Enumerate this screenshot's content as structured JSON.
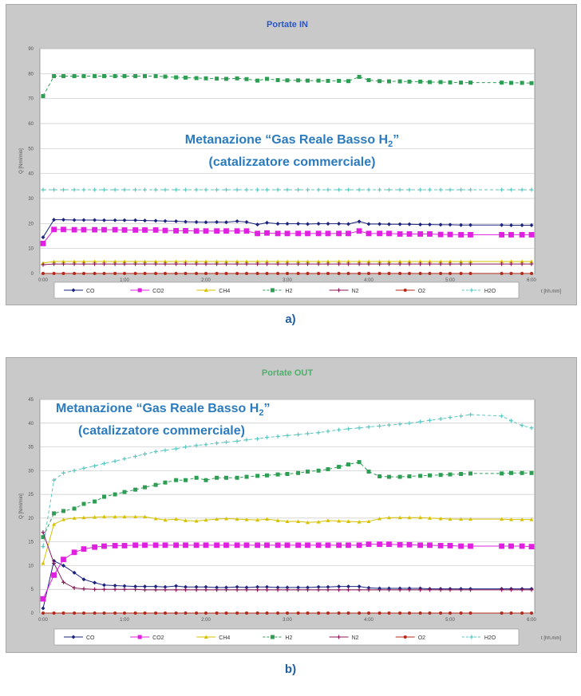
{
  "captions": {
    "a": "a)",
    "b": "b)"
  },
  "overlay": {
    "line1": "Metanazione “Gas Reale Basso H",
    "sub": "2",
    "close": "”",
    "line2": "(catalizzatore commerciale)"
  },
  "chart_data": [
    {
      "type": "line",
      "title": "Portate  IN",
      "title_color": "#2a56c6",
      "ylabel": "Q [Nml/min]",
      "xlabel": "t [hh.mm]",
      "ylim": [
        0,
        90
      ],
      "ytick_labels": [
        "0",
        "10",
        "20",
        "30",
        "40",
        "50",
        "60",
        "70",
        "80",
        "90"
      ],
      "xticks": [
        0,
        60,
        120,
        180,
        240,
        300,
        360
      ],
      "xtick_labels": [
        "0:00",
        "1:00",
        "2:00",
        "3:00",
        "4:00",
        "5:00",
        "6:00"
      ],
      "grid": true,
      "legend_position": "bottom",
      "x": [
        0,
        8,
        15,
        23,
        30,
        38,
        45,
        53,
        60,
        68,
        75,
        83,
        90,
        98,
        105,
        113,
        120,
        128,
        135,
        143,
        150,
        158,
        165,
        173,
        180,
        188,
        195,
        203,
        210,
        218,
        225,
        233,
        240,
        248,
        255,
        263,
        270,
        278,
        285,
        293,
        300,
        308,
        315,
        338,
        345,
        353,
        360
      ],
      "series": [
        {
          "name": "CO",
          "color": "#1a237e",
          "marker": "diamond",
          "values": [
            14.5,
            21.5,
            21.5,
            21.4,
            21.4,
            21.4,
            21.3,
            21.3,
            21.3,
            21.3,
            21.2,
            21.1,
            21.0,
            20.9,
            20.7,
            20.6,
            20.5,
            20.6,
            20.5,
            20.9,
            20.6,
            19.6,
            20.3,
            19.9,
            19.9,
            19.9,
            19.8,
            19.9,
            19.9,
            19.9,
            19.8,
            20.8,
            19.8,
            19.8,
            19.7,
            19.7,
            19.7,
            19.6,
            19.6,
            19.5,
            19.5,
            19.4,
            19.4,
            19.4,
            19.3,
            19.3,
            19.3
          ]
        },
        {
          "name": "CO2",
          "color": "#e020e0",
          "marker": "square",
          "values": [
            12,
            17.6,
            17.6,
            17.5,
            17.5,
            17.5,
            17.5,
            17.5,
            17.4,
            17.4,
            17.4,
            17.4,
            17.2,
            17.1,
            17.1,
            17.0,
            17.0,
            17.0,
            17.0,
            17.0,
            17.0,
            16.0,
            16.2,
            16.0,
            16.0,
            16.0,
            16.0,
            16.0,
            16.0,
            16.0,
            16.0,
            17.0,
            16.0,
            16.0,
            16.0,
            15.8,
            15.8,
            15.8,
            15.8,
            15.6,
            15.6,
            15.5,
            15.5,
            15.5,
            15.5,
            15.5,
            15.5
          ]
        },
        {
          "name": "CH4",
          "color": "#d6c200",
          "marker": "triangle",
          "values": [
            4.2,
            4.8,
            4.8,
            4.8,
            4.8,
            4.8,
            4.8,
            4.8,
            4.8,
            4.8,
            4.8,
            4.8,
            4.8,
            4.8,
            4.8,
            4.8,
            4.8,
            4.8,
            4.8,
            4.8,
            4.8,
            4.8,
            4.8,
            4.8,
            4.8,
            4.8,
            4.8,
            4.8,
            4.8,
            4.8,
            4.8,
            4.8,
            4.8,
            4.8,
            4.8,
            4.8,
            4.8,
            4.8,
            4.8,
            4.8,
            4.8,
            4.8,
            4.8,
            4.8,
            4.8,
            4.8,
            4.8
          ]
        },
        {
          "name": "H2",
          "color": "#2e9e55",
          "marker": "square",
          "dashed": true,
          "values": [
            71,
            79,
            79,
            79,
            79,
            79,
            79,
            79,
            79,
            79,
            79,
            79,
            78.8,
            78.5,
            78.4,
            78.2,
            78.1,
            78.0,
            77.9,
            78.1,
            77.8,
            77.2,
            77.9,
            77.4,
            77.3,
            77.3,
            77.2,
            77.2,
            77.1,
            77.1,
            77.0,
            78.7,
            77.4,
            77.0,
            76.9,
            76.9,
            76.8,
            76.8,
            76.6,
            76.6,
            76.5,
            76.4,
            76.4,
            76.4,
            76.3,
            76.3,
            76.2
          ]
        },
        {
          "name": "N2",
          "color": "#8b1a5a",
          "marker": "plus",
          "values": [
            3.5,
            3.8,
            3.8,
            3.8,
            3.8,
            3.8,
            3.8,
            3.8,
            3.8,
            3.8,
            3.8,
            3.8,
            3.8,
            3.8,
            3.8,
            3.8,
            3.8,
            3.8,
            3.8,
            3.8,
            3.8,
            3.8,
            3.8,
            3.8,
            3.8,
            3.8,
            3.8,
            3.8,
            3.8,
            3.8,
            3.8,
            3.8,
            3.8,
            3.8,
            3.8,
            3.8,
            3.8,
            3.8,
            3.8,
            3.8,
            3.8,
            3.8,
            3.8,
            3.8,
            3.8,
            3.8,
            3.8
          ]
        },
        {
          "name": "O2",
          "color": "#b32a1a",
          "marker": "circle",
          "values": [
            0,
            0,
            0,
            0,
            0,
            0,
            0,
            0,
            0,
            0,
            0,
            0,
            0,
            0,
            0,
            0,
            0,
            0,
            0,
            0,
            0,
            0,
            0,
            0,
            0,
            0,
            0,
            0,
            0,
            0,
            0,
            0,
            0,
            0,
            0,
            0,
            0,
            0,
            0,
            0,
            0,
            0,
            0,
            0,
            0,
            0,
            0
          ]
        },
        {
          "name": "H2O",
          "color": "#5cc6c0",
          "marker": "plus",
          "dashed": true,
          "values": [
            33.5,
            33.5,
            33.5,
            33.5,
            33.5,
            33.5,
            33.5,
            33.5,
            33.5,
            33.5,
            33.5,
            33.5,
            33.5,
            33.5,
            33.5,
            33.5,
            33.5,
            33.5,
            33.5,
            33.5,
            33.5,
            33.5,
            33.5,
            33.5,
            33.5,
            33.5,
            33.5,
            33.5,
            33.5,
            33.5,
            33.5,
            33.5,
            33.5,
            33.5,
            33.5,
            33.5,
            33.5,
            33.5,
            33.5,
            33.5,
            33.5,
            33.5,
            33.5,
            33.5,
            33.5,
            33.5,
            33.5
          ]
        }
      ]
    },
    {
      "type": "line",
      "title": "Portate  OUT",
      "title_color": "#4fae6c",
      "ylabel": "Q [Nml/min]",
      "xlabel": "t [hh.mm]",
      "ylim": [
        0,
        45
      ],
      "ytick_labels": [
        "0",
        "5",
        "10",
        "15",
        "20",
        "25",
        "30",
        "35",
        "40",
        "45"
      ],
      "xticks": [
        0,
        60,
        120,
        180,
        240,
        300,
        360
      ],
      "xtick_labels": [
        "0:00",
        "1:00",
        "2:00",
        "3:00",
        "4:00",
        "5:00",
        "6:00"
      ],
      "grid": true,
      "legend_position": "bottom",
      "x": [
        0,
        8,
        15,
        23,
        30,
        38,
        45,
        53,
        60,
        68,
        75,
        83,
        90,
        98,
        105,
        113,
        120,
        128,
        135,
        143,
        150,
        158,
        165,
        173,
        180,
        188,
        195,
        203,
        210,
        218,
        225,
        233,
        240,
        248,
        255,
        263,
        270,
        278,
        285,
        293,
        300,
        308,
        315,
        338,
        345,
        353,
        360
      ],
      "series": [
        {
          "name": "CO",
          "color": "#1a237e",
          "marker": "diamond",
          "values": [
            1,
            11,
            10,
            8.5,
            7.1,
            6.4,
            5.9,
            5.8,
            5.7,
            5.6,
            5.6,
            5.6,
            5.5,
            5.7,
            5.5,
            5.5,
            5.5,
            5.4,
            5.4,
            5.5,
            5.4,
            5.5,
            5.5,
            5.4,
            5.4,
            5.4,
            5.4,
            5.5,
            5.5,
            5.6,
            5.6,
            5.6,
            5.3,
            5.2,
            5.2,
            5.2,
            5.2,
            5.2,
            5.1,
            5.1,
            5.1,
            5.1,
            5.1,
            5.1,
            5.1,
            5.1,
            5.1
          ]
        },
        {
          "name": "CO2",
          "color": "#e020e0",
          "marker": "square",
          "values": [
            3,
            8,
            11.3,
            12.8,
            13.5,
            13.9,
            14.1,
            14.2,
            14.2,
            14.3,
            14.3,
            14.3,
            14.3,
            14.3,
            14.3,
            14.3,
            14.3,
            14.3,
            14.3,
            14.3,
            14.3,
            14.3,
            14.3,
            14.3,
            14.3,
            14.3,
            14.3,
            14.3,
            14.3,
            14.3,
            14.3,
            14.3,
            14.5,
            14.5,
            14.5,
            14.4,
            14.4,
            14.3,
            14.3,
            14.2,
            14.2,
            14.1,
            14.1,
            14.1,
            14.1,
            14.1,
            14.0
          ]
        },
        {
          "name": "CH4",
          "color": "#d6c200",
          "marker": "triangle",
          "values": [
            10.5,
            18.7,
            19.7,
            20.0,
            20.1,
            20.2,
            20.3,
            20.3,
            20.3,
            20.3,
            20.3,
            19.9,
            19.6,
            19.8,
            19.5,
            19.4,
            19.6,
            19.8,
            19.9,
            19.8,
            19.7,
            19.6,
            19.8,
            19.5,
            19.3,
            19.3,
            19.1,
            19.2,
            19.5,
            19.4,
            19.3,
            19.2,
            19.3,
            19.9,
            20.1,
            20.1,
            20.1,
            20.1,
            20.0,
            19.9,
            19.8,
            19.8,
            19.8,
            19.8,
            19.7,
            19.7,
            19.7
          ]
        },
        {
          "name": "H2",
          "color": "#2e9e55",
          "marker": "square",
          "dashed": true,
          "values": [
            16,
            21,
            21.5,
            22,
            23,
            23.5,
            24.5,
            25,
            25.5,
            26,
            26.5,
            27,
            27.5,
            28,
            28,
            28.5,
            28,
            28.5,
            28.5,
            28.5,
            28.7,
            28.9,
            29.0,
            29.2,
            29.3,
            29.5,
            29.8,
            30.0,
            30.3,
            30.8,
            31.3,
            31.8,
            29.8,
            28.8,
            28.7,
            28.7,
            28.8,
            28.9,
            29.0,
            29.1,
            29.2,
            29.3,
            29.4,
            29.4,
            29.5,
            29.5,
            29.5
          ]
        },
        {
          "name": "N2",
          "color": "#8b1a5a",
          "marker": "plus",
          "values": [
            17,
            10.5,
            6.5,
            5.3,
            5.1,
            5.0,
            5.0,
            5.0,
            5.0,
            5.0,
            4.9,
            4.9,
            4.9,
            4.9,
            4.9,
            4.9,
            4.9,
            4.9,
            4.9,
            4.9,
            4.9,
            4.9,
            4.9,
            4.9,
            4.9,
            4.9,
            4.9,
            4.9,
            4.9,
            4.9,
            4.9,
            4.9,
            4.9,
            4.9,
            4.9,
            4.9,
            4.9,
            4.9,
            4.9,
            4.9,
            4.9,
            4.9,
            4.9,
            4.9,
            4.9,
            4.9,
            4.9
          ]
        },
        {
          "name": "O2",
          "color": "#b32a1a",
          "marker": "circle",
          "values": [
            0,
            0,
            0,
            0,
            0,
            0,
            0,
            0,
            0,
            0,
            0,
            0,
            0,
            0,
            0,
            0,
            0,
            0,
            0,
            0,
            0,
            0,
            0,
            0,
            0,
            0,
            0,
            0,
            0,
            0,
            0,
            0,
            0,
            0,
            0,
            0,
            0,
            0,
            0,
            0,
            0,
            0,
            0,
            0,
            0,
            0,
            0
          ]
        },
        {
          "name": "H2O",
          "color": "#5cc6c0",
          "marker": "plus",
          "dashed": true,
          "values": [
            14,
            28,
            29.5,
            30,
            30.5,
            31,
            31.5,
            32,
            32.5,
            33,
            33.5,
            34,
            34.3,
            34.6,
            35,
            35.3,
            35.5,
            35.8,
            36,
            36.2,
            36.5,
            36.7,
            37,
            37.2,
            37.4,
            37.6,
            37.8,
            38,
            38.3,
            38.6,
            38.8,
            39,
            39.2,
            39.4,
            39.6,
            39.8,
            40,
            40.3,
            40.6,
            40.9,
            41.2,
            41.5,
            41.8,
            41.5,
            40.5,
            39.5,
            39
          ]
        }
      ]
    }
  ]
}
